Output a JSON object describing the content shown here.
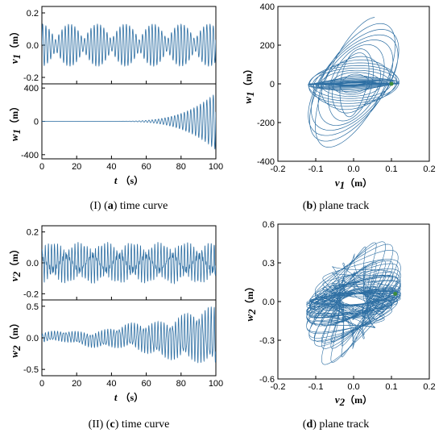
{
  "captions": {
    "a": {
      "prefix": "(I) (",
      "letter": "a",
      "text": ") time curve"
    },
    "b": {
      "prefix": "(",
      "letter": "b",
      "text": ") plane track"
    },
    "c": {
      "prefix": "(II) (",
      "letter": "c",
      "text": ") time curve"
    },
    "d": {
      "prefix": "(",
      "letter": "d",
      "text": ") plane track"
    }
  },
  "chart_data": [
    {
      "id": "a_top",
      "type": "line",
      "title": "",
      "xlabel": "",
      "ylabel": "v1 (m)",
      "ylabel_var": "v",
      "ylabel_sub": "1",
      "ylabel_unit": "（m）",
      "xlim": [
        0,
        100
      ],
      "ylim": [
        -0.24,
        0.24
      ],
      "yticks": [
        -0.2,
        0.0,
        0.2
      ],
      "ytick_labels": [
        "-0.2",
        "0.0",
        "0.2"
      ],
      "xticks": [
        0,
        20,
        40,
        60,
        80,
        100
      ],
      "xtick_labels": [],
      "series": [
        {
          "description": "beating oscillation",
          "amplitude_range": [
            -0.13,
            0.13
          ],
          "beat_period_s": 16
        }
      ],
      "color": "#2e6fa3"
    },
    {
      "id": "a_bottom",
      "type": "line",
      "title": "",
      "xlabel": "t (s)",
      "xlabel_var": "t",
      "xlabel_unit": "（s）",
      "ylabel": "w1 (m)",
      "ylabel_var": "w",
      "ylabel_sub": "1",
      "ylabel_unit": "（m）",
      "xlim": [
        0,
        100
      ],
      "ylim": [
        -450,
        450
      ],
      "yticks": [
        -400,
        0,
        400
      ],
      "ytick_labels": [
        "-400",
        "0",
        "400"
      ],
      "xticks": [
        0,
        20,
        40,
        60,
        80,
        100
      ],
      "xtick_labels": [
        "0",
        "20",
        "40",
        "60",
        "80",
        "100"
      ],
      "series": [
        {
          "description": "oscillation growing from ~0 after t≈40 s to about ±350 at t=100 s",
          "amplitude_range": [
            -360,
            330
          ]
        }
      ],
      "color": "#2e6fa3"
    },
    {
      "id": "b",
      "type": "line",
      "title": "",
      "xlabel": "v1 (m)",
      "xlabel_var": "v",
      "xlabel_sub": "1",
      "xlabel_unit": "（m）",
      "ylabel": "w1 (m)",
      "ylabel_var": "w",
      "ylabel_sub": "1",
      "ylabel_unit": "（m）",
      "xlim": [
        -0.2,
        0.2
      ],
      "ylim": [
        -400,
        400
      ],
      "xticks": [
        -0.2,
        -0.1,
        0.0,
        0.1,
        0.2
      ],
      "xtick_labels": [
        "-0.2",
        "-0.1",
        "0.0",
        "0.1",
        "0.2"
      ],
      "yticks": [
        -400,
        -200,
        0,
        200,
        400
      ],
      "ytick_labels": [
        "-400",
        "-200",
        "0",
        "200",
        "400"
      ],
      "series": [
        {
          "description": "phase-plane track of nested ellipses",
          "x_range": [
            -0.13,
            0.13
          ],
          "y_range": [
            -350,
            330
          ]
        }
      ],
      "color": "#2e6fa3",
      "marker_color": "#3c8c3c"
    },
    {
      "id": "c_top",
      "type": "line",
      "title": "",
      "xlabel": "",
      "ylabel": "v2 (m)",
      "ylabel_var": "v",
      "ylabel_sub": "2",
      "ylabel_unit": "（m）",
      "xlim": [
        0,
        100
      ],
      "ylim": [
        -0.24,
        0.24
      ],
      "yticks": [
        -0.2,
        0.0,
        0.2
      ],
      "ytick_labels": [
        "-0.2",
        "0.0",
        "0.2"
      ],
      "xticks": [
        0,
        20,
        40,
        60,
        80,
        100
      ],
      "xtick_labels": [],
      "series": [
        {
          "description": "dense oscillation",
          "amplitude_range": [
            -0.13,
            0.13
          ]
        }
      ],
      "color": "#2e6fa3"
    },
    {
      "id": "c_bottom",
      "type": "line",
      "title": "",
      "xlabel": "t (s)",
      "xlabel_var": "t",
      "xlabel_unit": "（s）",
      "ylabel": "w2 (m)",
      "ylabel_var": "w",
      "ylabel_sub": "2",
      "ylabel_unit": "（m）",
      "xlim": [
        0,
        100
      ],
      "ylim": [
        -0.6,
        0.6
      ],
      "yticks": [
        -0.5,
        0.0,
        0.5
      ],
      "ytick_labels": [
        "-0.5",
        "0.0",
        "0.5"
      ],
      "xticks": [
        0,
        20,
        40,
        60,
        80,
        100
      ],
      "xtick_labels": [
        "0",
        "20",
        "40",
        "60",
        "80",
        "100"
      ],
      "series": [
        {
          "description": "oscillation with slowly growing amplitude",
          "amplitude_range": [
            -0.45,
            0.55
          ]
        }
      ],
      "color": "#2e6fa3"
    },
    {
      "id": "d",
      "type": "line",
      "title": "",
      "xlabel": "v2 (m)",
      "xlabel_var": "v",
      "xlabel_sub": "2",
      "xlabel_unit": "（m）",
      "ylabel": "w2 (m)",
      "ylabel_var": "w",
      "ylabel_sub": "2",
      "ylabel_unit": "（m）",
      "xlim": [
        -0.2,
        0.2
      ],
      "ylim": [
        -0.6,
        0.6
      ],
      "xticks": [
        -0.2,
        -0.1,
        0.0,
        0.1,
        0.2
      ],
      "xtick_labels": [
        "-0.2",
        "-0.1",
        "0.0",
        "0.1",
        "0.2"
      ],
      "yticks": [
        -0.6,
        -0.3,
        0.0,
        0.3,
        0.6
      ],
      "ytick_labels": [
        "-0.6",
        "-0.3",
        "0.0",
        "0.3",
        "0.6"
      ],
      "series": [
        {
          "description": "dense chaotic-looking phase-plane track",
          "x_range": [
            -0.13,
            0.13
          ],
          "y_range": [
            -0.45,
            0.55
          ]
        }
      ],
      "color": "#2e6fa3",
      "marker_color": "#3c8c3c"
    }
  ]
}
